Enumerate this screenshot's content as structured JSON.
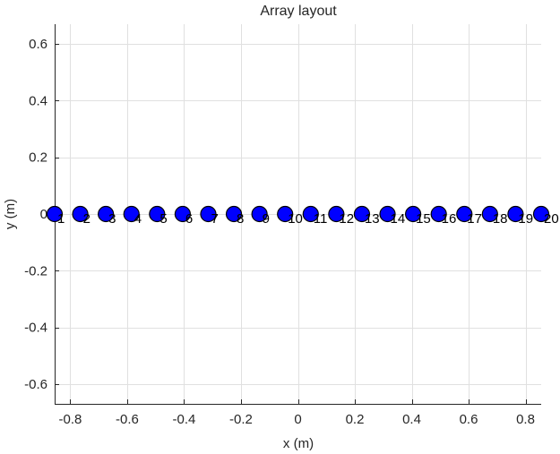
{
  "chart_data": {
    "type": "scatter",
    "title": "Array layout",
    "xlabel": "x (m)",
    "ylabel": "y (m)",
    "xlim": [
      -0.855,
      0.855
    ],
    "ylim": [
      -0.67,
      0.67
    ],
    "xticks": [
      -0.8,
      -0.6,
      -0.4,
      -0.2,
      0,
      0.2,
      0.4,
      0.6,
      0.8
    ],
    "xtick_labels": [
      "-0.8",
      "-0.6",
      "-0.4",
      "-0.2",
      "0",
      "0.2",
      "0.4",
      "0.6",
      "0.8"
    ],
    "yticks": [
      -0.6,
      -0.4,
      -0.2,
      0,
      0.2,
      0.4,
      0.6
    ],
    "ytick_labels": [
      "-0.6",
      "-0.4",
      "-0.2",
      "0",
      "0.2",
      "0.4",
      "0.6"
    ],
    "grid": true,
    "marker_color": "#0000ff",
    "marker_edge_color": "#000000",
    "points": [
      {
        "label": "1",
        "x": -0.855,
        "y": 0
      },
      {
        "label": "2",
        "x": -0.765,
        "y": 0
      },
      {
        "label": "3",
        "x": -0.675,
        "y": 0
      },
      {
        "label": "4",
        "x": -0.585,
        "y": 0
      },
      {
        "label": "5",
        "x": -0.495,
        "y": 0
      },
      {
        "label": "6",
        "x": -0.405,
        "y": 0
      },
      {
        "label": "7",
        "x": -0.315,
        "y": 0
      },
      {
        "label": "8",
        "x": -0.225,
        "y": 0
      },
      {
        "label": "9",
        "x": -0.135,
        "y": 0
      },
      {
        "label": "10",
        "x": -0.045,
        "y": 0
      },
      {
        "label": "11",
        "x": 0.045,
        "y": 0
      },
      {
        "label": "12",
        "x": 0.135,
        "y": 0
      },
      {
        "label": "13",
        "x": 0.225,
        "y": 0
      },
      {
        "label": "14",
        "x": 0.315,
        "y": 0
      },
      {
        "label": "15",
        "x": 0.405,
        "y": 0
      },
      {
        "label": "16",
        "x": 0.495,
        "y": 0
      },
      {
        "label": "17",
        "x": 0.585,
        "y": 0
      },
      {
        "label": "18",
        "x": 0.675,
        "y": 0
      },
      {
        "label": "19",
        "x": 0.765,
        "y": 0
      },
      {
        "label": "20",
        "x": 0.855,
        "y": 0
      }
    ]
  }
}
